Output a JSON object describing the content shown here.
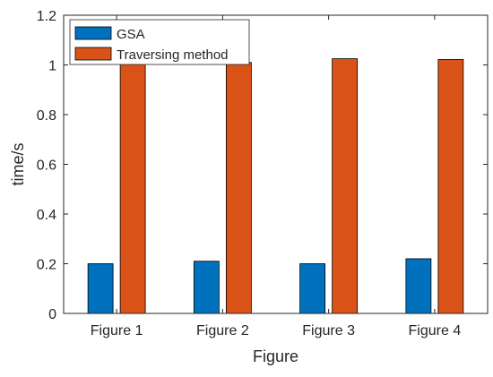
{
  "chart_data": {
    "type": "bar",
    "categories": [
      "Figure 1",
      "Figure 2",
      "Figure 3",
      "Figure 4"
    ],
    "series": [
      {
        "name": "GSA",
        "values": [
          0.2,
          0.21,
          0.2,
          0.22
        ],
        "color": "#0072BD"
      },
      {
        "name": "Traversing method",
        "values": [
          1.01,
          1.01,
          1.025,
          1.022
        ],
        "color": "#D95319"
      }
    ],
    "title": "",
    "xlabel": "Figure",
    "ylabel": "time/s",
    "ylim": [
      0,
      1.2
    ],
    "yticks": [
      "0",
      "0.2",
      "0.4",
      "0.6",
      "0.8",
      "1",
      "1.2"
    ],
    "grid": false,
    "legend_position": "top-left"
  }
}
